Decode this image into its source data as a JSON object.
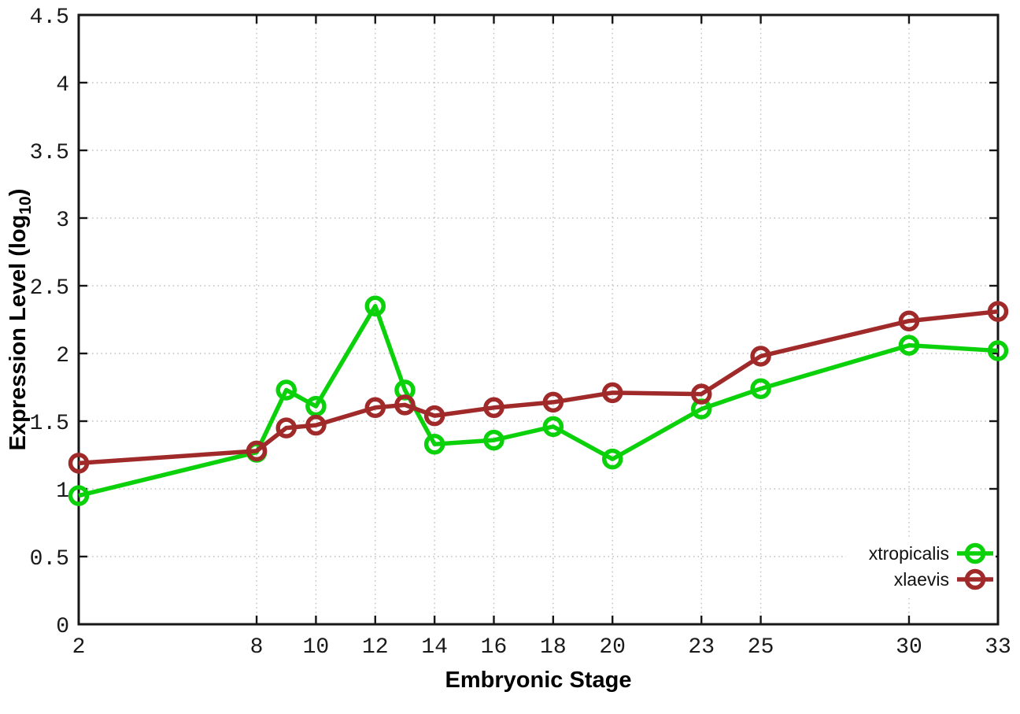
{
  "chart_data": {
    "type": "line",
    "title": "",
    "xlabel": "Embryonic Stage",
    "ylabel": {
      "text": "Expression Level (log10)",
      "prefix": "Expression Level (log",
      "subscript": "10",
      "suffix": ")"
    },
    "xlim": [
      2,
      33
    ],
    "ylim": [
      0,
      4.5
    ],
    "grid": true,
    "legend_position": "inside-bottom-right",
    "x_ticks": [
      2,
      8,
      10,
      12,
      14,
      16,
      18,
      20,
      23,
      25,
      30,
      33
    ],
    "x_tick_labels": [
      "2",
      "8",
      "10",
      "12",
      "14",
      "16",
      "18",
      "20",
      "23",
      "25",
      "30",
      "33"
    ],
    "y_ticks": [
      0,
      0.5,
      1,
      1.5,
      2,
      2.5,
      3,
      3.5,
      4,
      4.5
    ],
    "y_tick_labels": [
      "0",
      "0.5",
      "1",
      "1.5",
      "2",
      "2.5",
      "3",
      "3.5",
      "4",
      "4.5"
    ],
    "x": [
      2,
      8,
      9,
      10,
      12,
      13,
      14,
      16,
      18,
      20,
      23,
      25,
      30,
      33
    ],
    "series": [
      {
        "name": "xtropicalis",
        "color": "#0bd10b",
        "marker": "open-circle",
        "values": [
          0.95,
          1.27,
          1.73,
          1.61,
          2.35,
          1.73,
          1.33,
          1.36,
          1.46,
          1.22,
          1.59,
          1.74,
          2.06,
          2.02
        ]
      },
      {
        "name": "xlaevis",
        "color": "#a02a2a",
        "marker": "open-circle",
        "values": [
          1.19,
          1.28,
          1.45,
          1.47,
          1.6,
          1.62,
          1.54,
          1.6,
          1.64,
          1.71,
          1.7,
          1.98,
          2.24,
          2.31
        ]
      }
    ],
    "style": {
      "grid_color": "#bdbdbd",
      "border_color": "#161616",
      "background": "#ffffff"
    }
  }
}
